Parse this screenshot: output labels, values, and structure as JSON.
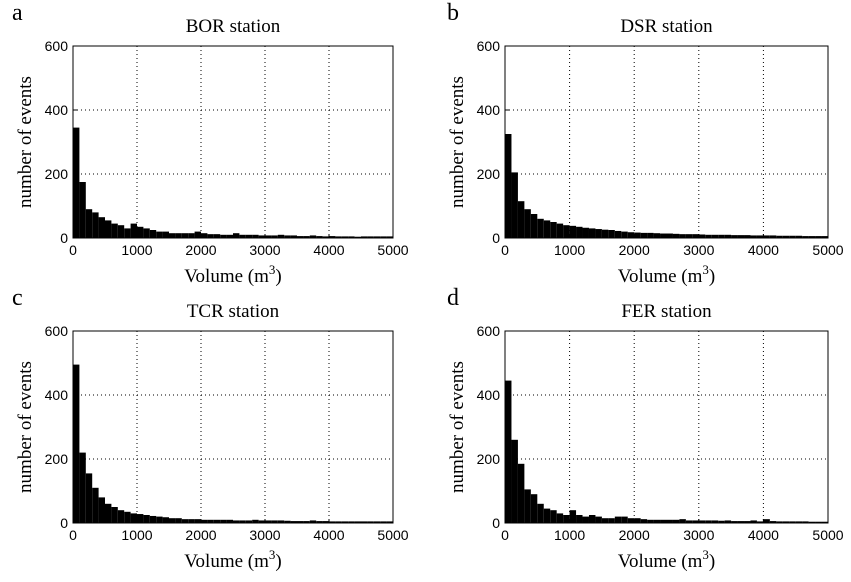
{
  "chart_data": [
    {
      "type": "histogram",
      "label": "a",
      "title": "BOR station",
      "ylabel": "number of events",
      "xlabel": [
        "Volume (m",
        "3",
        ")"
      ],
      "bins": [
        0,
        100,
        200,
        300,
        400,
        500,
        600,
        700,
        800,
        900,
        1000,
        1100,
        1200,
        1300,
        1400,
        1500,
        1600,
        1700,
        1800,
        1900,
        2000,
        2100,
        2200,
        2300,
        2400,
        2500,
        2600,
        2700,
        2800,
        2900,
        3000,
        3100,
        3200,
        3300,
        3400,
        3500,
        3600,
        3700,
        3800,
        3900,
        4000,
        4100,
        4200,
        4300,
        4400,
        4500,
        4600,
        4700,
        4800,
        4900,
        5000
      ],
      "values": [
        345,
        175,
        90,
        80,
        65,
        55,
        45,
        40,
        30,
        45,
        35,
        30,
        25,
        20,
        20,
        15,
        15,
        15,
        15,
        20,
        15,
        12,
        12,
        10,
        10,
        15,
        10,
        10,
        10,
        8,
        8,
        8,
        10,
        8,
        8,
        6,
        6,
        8,
        6,
        5,
        6,
        5,
        5,
        5,
        4,
        5,
        5,
        5,
        5,
        5
      ],
      "color": "#000000",
      "xlim": [
        0,
        5000
      ],
      "ylim": [
        0,
        600
      ],
      "xticks": [
        0,
        1000,
        2000,
        3000,
        4000,
        5000
      ],
      "yticks": [
        0,
        200,
        400,
        600
      ],
      "grid": true
    },
    {
      "type": "histogram",
      "label": "b",
      "title": "DSR station",
      "ylabel": "number of events",
      "xlabel": [
        "Volume (m",
        "3",
        ")"
      ],
      "bins": [
        0,
        100,
        200,
        300,
        400,
        500,
        600,
        700,
        800,
        900,
        1000,
        1100,
        1200,
        1300,
        1400,
        1500,
        1600,
        1700,
        1800,
        1900,
        2000,
        2100,
        2200,
        2300,
        2400,
        2500,
        2600,
        2700,
        2800,
        2900,
        3000,
        3100,
        3200,
        3300,
        3400,
        3500,
        3600,
        3700,
        3800,
        3900,
        4000,
        4100,
        4200,
        4300,
        4400,
        4500,
        4600,
        4700,
        4800,
        4900,
        5000
      ],
      "values": [
        325,
        205,
        115,
        90,
        75,
        60,
        55,
        50,
        45,
        40,
        38,
        35,
        32,
        30,
        28,
        26,
        25,
        22,
        20,
        18,
        17,
        16,
        16,
        15,
        14,
        14,
        13,
        12,
        12,
        12,
        11,
        10,
        10,
        10,
        10,
        9,
        9,
        9,
        8,
        8,
        8,
        8,
        7,
        7,
        7,
        7,
        6,
        6,
        6,
        6
      ],
      "color": "#000000",
      "xlim": [
        0,
        5000
      ],
      "ylim": [
        0,
        600
      ],
      "xticks": [
        0,
        1000,
        2000,
        3000,
        4000,
        5000
      ],
      "yticks": [
        0,
        200,
        400,
        600
      ],
      "grid": true
    },
    {
      "type": "histogram",
      "label": "c",
      "title": "TCR station",
      "ylabel": "number of events",
      "xlabel": [
        "Volume (m",
        "3",
        ")"
      ],
      "bins": [
        0,
        100,
        200,
        300,
        400,
        500,
        600,
        700,
        800,
        900,
        1000,
        1100,
        1200,
        1300,
        1400,
        1500,
        1600,
        1700,
        1800,
        1900,
        2000,
        2100,
        2200,
        2300,
        2400,
        2500,
        2600,
        2700,
        2800,
        2900,
        3000,
        3100,
        3200,
        3300,
        3400,
        3500,
        3600,
        3700,
        3800,
        3900,
        4000,
        4100,
        4200,
        4300,
        4400,
        4500,
        4600,
        4700,
        4800,
        4900,
        5000
      ],
      "values": [
        495,
        220,
        155,
        110,
        80,
        60,
        50,
        40,
        35,
        30,
        28,
        25,
        22,
        20,
        18,
        15,
        15,
        12,
        12,
        12,
        10,
        10,
        10,
        10,
        10,
        8,
        8,
        8,
        10,
        8,
        8,
        8,
        8,
        7,
        6,
        6,
        6,
        8,
        6,
        6,
        5,
        5,
        5,
        5,
        5,
        5,
        5,
        5,
        5,
        5
      ],
      "color": "#000000",
      "xlim": [
        0,
        5000
      ],
      "ylim": [
        0,
        600
      ],
      "xticks": [
        0,
        1000,
        2000,
        3000,
        4000,
        5000
      ],
      "yticks": [
        0,
        200,
        400,
        600
      ],
      "grid": true
    },
    {
      "type": "histogram",
      "label": "d",
      "title": "FER station",
      "ylabel": "number of events",
      "xlabel": [
        "Volume (m",
        "3",
        ")"
      ],
      "bins": [
        0,
        100,
        200,
        300,
        400,
        500,
        600,
        700,
        800,
        900,
        1000,
        1100,
        1200,
        1300,
        1400,
        1500,
        1600,
        1700,
        1800,
        1900,
        2000,
        2100,
        2200,
        2300,
        2400,
        2500,
        2600,
        2700,
        2800,
        2900,
        3000,
        3100,
        3200,
        3300,
        3400,
        3500,
        3600,
        3700,
        3800,
        3900,
        4000,
        4100,
        4200,
        4300,
        4400,
        4500,
        4600,
        4700,
        4800,
        4900,
        5000
      ],
      "values": [
        445,
        260,
        185,
        105,
        90,
        60,
        45,
        40,
        30,
        25,
        40,
        25,
        20,
        25,
        20,
        15,
        15,
        20,
        20,
        15,
        15,
        12,
        10,
        10,
        10,
        10,
        10,
        12,
        8,
        8,
        8,
        8,
        8,
        7,
        8,
        6,
        6,
        6,
        8,
        5,
        12,
        6,
        5,
        5,
        5,
        5,
        5,
        4,
        4,
        4
      ],
      "color": "#000000",
      "xlim": [
        0,
        5000
      ],
      "ylim": [
        0,
        600
      ],
      "xticks": [
        0,
        1000,
        2000,
        3000,
        4000,
        5000
      ],
      "yticks": [
        0,
        200,
        400,
        600
      ],
      "grid": true
    }
  ]
}
